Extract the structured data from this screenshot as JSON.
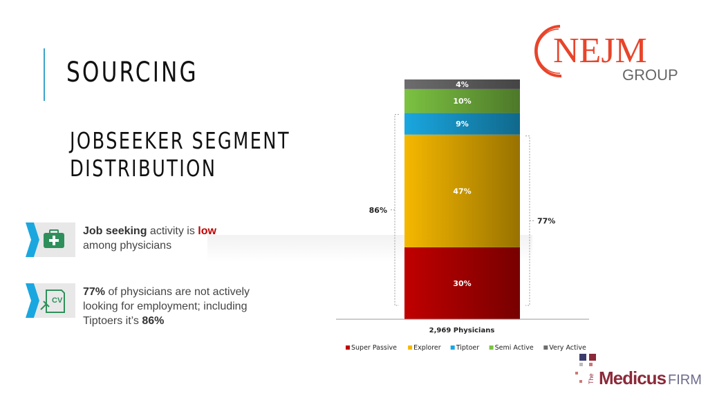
{
  "slide": {
    "title": "SOURCING",
    "subtitle_line1": "JOBSEEKER SEGMENT",
    "subtitle_line2": "DISTRIBUTION"
  },
  "bullets": [
    {
      "icon": "medical-kit-icon",
      "bold_lead": "Job seeking",
      "mid": " activity is ",
      "highlight": "low",
      "rest": "among physicians"
    },
    {
      "icon": "cv-document-icon",
      "bold_lead": "77%",
      "text": " of physicians are not actively looking for employment; including Tiptoers it’s ",
      "bold_tail": "86%"
    }
  ],
  "logos": {
    "nejm_mark": "NEJM",
    "nejm_group": "GROUP",
    "medicus_the": "The",
    "medicus_name": "Medicus",
    "medicus_firm": "FIRM"
  },
  "colors": {
    "accent": "#3aa3c9",
    "super_passive": "#c00000",
    "explorer": "#f5b800",
    "tiptoer": "#1aa7e0",
    "semi_active": "#7cc242",
    "very_active": "#6d6d6d",
    "nejm_red": "#e8442a"
  },
  "chart_data": {
    "type": "bar",
    "stacked": true,
    "categories": [
      "2,969 Physicians"
    ],
    "ylim": [
      0,
      100
    ],
    "series": [
      {
        "name": "Super Passive",
        "values": [
          30
        ],
        "label": "30%",
        "color": "#c00000"
      },
      {
        "name": "Explorer",
        "values": [
          47
        ],
        "label": "47%",
        "color": "#f5b800"
      },
      {
        "name": "Tiptoer",
        "values": [
          9
        ],
        "label": "9%",
        "color": "#1aa7e0"
      },
      {
        "name": "Semi Active",
        "values": [
          10
        ],
        "label": "10%",
        "color": "#7cc242"
      },
      {
        "name": "Very Active",
        "values": [
          4
        ],
        "label": "4%",
        "color": "#6d6d6d"
      }
    ],
    "annotations": [
      {
        "label": "86%",
        "side": "left",
        "from": 0,
        "to": 86
      },
      {
        "label": "77%",
        "side": "right",
        "from": 0,
        "to": 77
      }
    ],
    "legend": "bottom",
    "grid": false
  }
}
